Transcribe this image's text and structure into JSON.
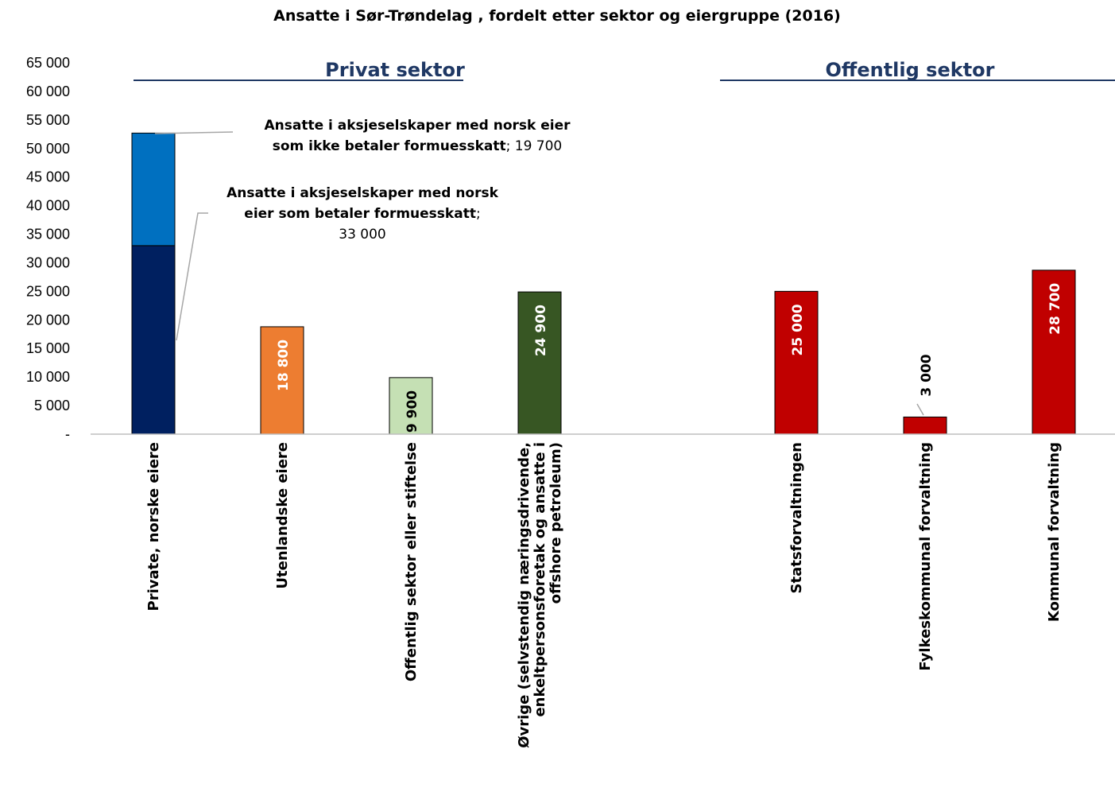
{
  "chart_data": {
    "type": "bar",
    "title": "Ansatte i Sør-Trøndelag , fordelt etter sektor og eiergruppe (2016)",
    "ylim": [
      0,
      65000
    ],
    "yticks": [
      {
        "value": 0,
        "label": "-"
      },
      {
        "value": 5000,
        "label": "5 000"
      },
      {
        "value": 10000,
        "label": "10 000"
      },
      {
        "value": 15000,
        "label": "15 000"
      },
      {
        "value": 20000,
        "label": "20 000"
      },
      {
        "value": 25000,
        "label": "25 000"
      },
      {
        "value": 30000,
        "label": "30 000"
      },
      {
        "value": 35000,
        "label": "35 000"
      },
      {
        "value": 40000,
        "label": "40 000"
      },
      {
        "value": 45000,
        "label": "45 000"
      },
      {
        "value": 50000,
        "label": "50 000"
      },
      {
        "value": 55000,
        "label": "55 000"
      },
      {
        "value": 60000,
        "label": "60 000"
      },
      {
        "value": 65000,
        "label": "65 000"
      }
    ],
    "grid": false,
    "legend": "none",
    "sectors": [
      {
        "label": "Privat sektor"
      },
      {
        "label": "Offentlig sektor"
      }
    ],
    "bars": [
      {
        "category": [
          "Private, norske eiere"
        ],
        "stack": [
          {
            "value": 33000,
            "color": "#002060"
          },
          {
            "value": 19700,
            "color": "#0070c0"
          }
        ]
      },
      {
        "category": [
          "Utenlandske eiere"
        ],
        "stack": [
          {
            "value": 18800,
            "color": "#ed7d31",
            "label": "18 800"
          }
        ]
      },
      {
        "category": [
          "Offentlig sektor eller stiftelse"
        ],
        "stack": [
          {
            "value": 9900,
            "color": "#c5e0b4",
            "label": "9 900"
          }
        ]
      },
      {
        "category": [
          "Øvrige (selvstendig næringsdrivende,",
          "enkeltpersonsforetak og ansatte i",
          "offshore petroleum)"
        ],
        "stack": [
          {
            "value": 24900,
            "color": "#375623",
            "label": "24 900"
          }
        ]
      },
      {
        "category": [
          "Statsforvaltningen"
        ],
        "stack": [
          {
            "value": 25000,
            "color": "#c00000",
            "label": "25 000"
          }
        ]
      },
      {
        "category": [
          "Fylkeskommunal forvaltning"
        ],
        "stack": [
          {
            "value": 3000,
            "color": "#c00000",
            "label": "3 000"
          }
        ]
      },
      {
        "category": [
          "Kommunal forvaltning"
        ],
        "stack": [
          {
            "value": 28700,
            "color": "#c00000",
            "label": "28 700"
          }
        ]
      }
    ],
    "annotations": [
      {
        "lines": [
          [
            {
              "text": "Ansatte i aksjeselskaper med norsk eier",
              "bold": true
            }
          ],
          [
            {
              "text": "som ikke betaler formuesskatt",
              "bold": true
            },
            {
              "text": "; 19 700",
              "bold": false
            }
          ]
        ]
      },
      {
        "lines": [
          [
            {
              "text": "Ansatte i aksjeselskaper med norsk",
              "bold": true
            }
          ],
          [
            {
              "text": "eier som betaler formuesskatt",
              "bold": true
            },
            {
              "text": ";",
              "bold": false
            }
          ],
          [
            {
              "text": "33 000",
              "bold": false
            }
          ]
        ]
      }
    ]
  }
}
